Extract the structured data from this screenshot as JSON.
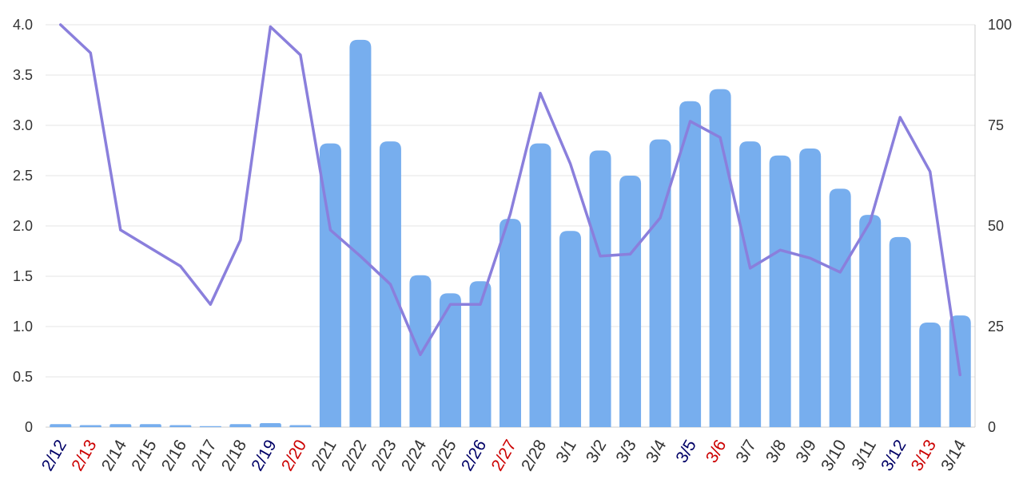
{
  "chart_data": {
    "type": "bar",
    "title": "",
    "xlabel": "",
    "ylabel": "",
    "categories": [
      "2/12",
      "2/13",
      "2/14",
      "2/15",
      "2/16",
      "2/17",
      "2/18",
      "2/19",
      "2/20",
      "2/21",
      "2/22",
      "2/23",
      "2/24",
      "2/25",
      "2/26",
      "2/27",
      "2/28",
      "3/1",
      "3/2",
      "3/3",
      "3/4",
      "3/5",
      "3/6",
      "3/7",
      "3/8",
      "3/9",
      "3/10",
      "3/11",
      "3/12",
      "3/13",
      "3/14"
    ],
    "category_colors": [
      "#000066",
      "#cc0000",
      "#333333",
      "#333333",
      "#333333",
      "#333333",
      "#333333",
      "#000066",
      "#cc0000",
      "#333333",
      "#333333",
      "#333333",
      "#333333",
      "#333333",
      "#000066",
      "#cc0000",
      "#333333",
      "#333333",
      "#333333",
      "#333333",
      "#333333",
      "#000066",
      "#cc0000",
      "#333333",
      "#333333",
      "#333333",
      "#333333",
      "#333333",
      "#000066",
      "#cc0000",
      "#333333"
    ],
    "series": [
      {
        "type": "bar",
        "axis": "left",
        "color": "#77aeee",
        "values": [
          0.03,
          0.02,
          0.03,
          0.03,
          0.02,
          0.01,
          0.03,
          0.04,
          0.02,
          2.82,
          3.85,
          2.84,
          1.51,
          1.33,
          1.45,
          2.07,
          2.82,
          1.95,
          2.75,
          2.5,
          2.86,
          3.24,
          3.36,
          2.84,
          2.7,
          2.77,
          2.37,
          2.11,
          1.89,
          1.04,
          1.11
        ]
      },
      {
        "type": "line",
        "axis": "right",
        "color": "#8a7fdc",
        "values": [
          100,
          93,
          49,
          44.5,
          40,
          30.5,
          46.5,
          99.5,
          92.5,
          49,
          42.5,
          35.5,
          18,
          30.5,
          30.5,
          53,
          83,
          65.5,
          42.5,
          43,
          52,
          76,
          72,
          39.5,
          44,
          42,
          38.5,
          51,
          77,
          63.5,
          13
        ]
      }
    ],
    "y_left": {
      "min": 0,
      "max": 4.0,
      "ticks": [
        "0",
        "0.5",
        "1.0",
        "1.5",
        "2.0",
        "2.5",
        "3.0",
        "3.5",
        "4.0"
      ]
    },
    "y_right": {
      "min": 0,
      "max": 100,
      "ticks": [
        "0",
        "25",
        "50",
        "75",
        "100"
      ]
    },
    "grid": true,
    "legend": "none"
  }
}
